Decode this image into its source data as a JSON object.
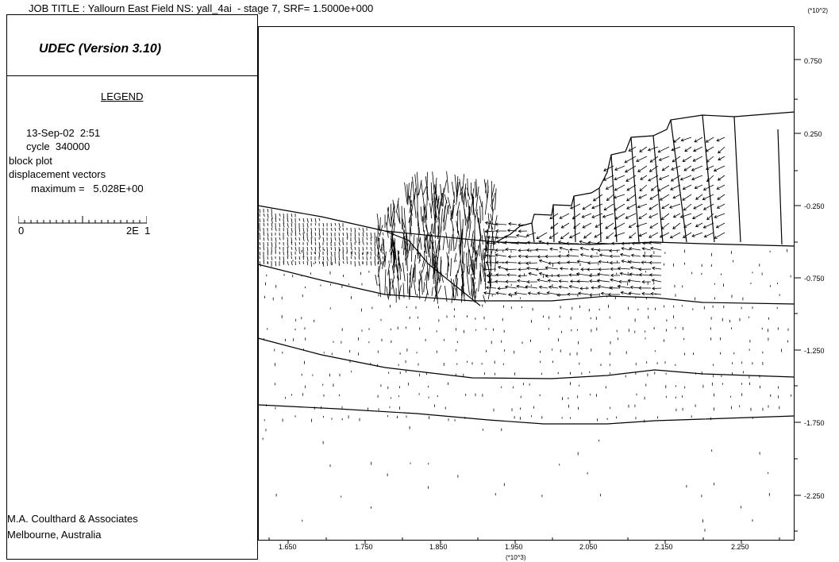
{
  "header": {
    "job_title": "JOB TITLE : Yallourn East Field NS: yall_4ai  - stage 7, SRF= 1.5000e+000",
    "y_scale_note": "(*10^2)"
  },
  "panel": {
    "program": "UDEC (Version 3.10)",
    "legend_title": "LEGEND",
    "date": "13-Sep-02  2:51",
    "cycle": "cycle  340000",
    "plot_type": "block plot",
    "vectors": "displacement vectors",
    "maximum": "maximum =   5.028E+00",
    "scale_min": "0",
    "scale_max": "2E  1"
  },
  "axes": {
    "y_ticks": [
      "0.750",
      "0.250",
      "-0.250",
      "-0.750",
      "-1.250",
      "-1.750",
      "-2.250"
    ],
    "x_ticks": [
      "1.650",
      "1.750",
      "1.850",
      "1.950",
      "2.050",
      "2.150",
      "2.250"
    ],
    "x_scale_note": "(*10^3)"
  },
  "footer": {
    "company": "M.A. Coulthard & Associates",
    "location": "Melbourne,  Australia"
  }
}
